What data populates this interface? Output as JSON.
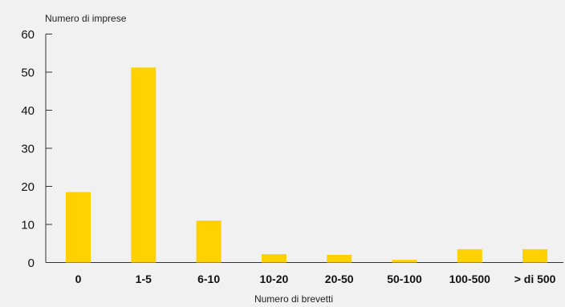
{
  "chart_data": {
    "type": "bar",
    "ylabel": "Numero di imprese",
    "xlabel": "Numero di brevetti",
    "categories": [
      "0",
      "1-5",
      "6-10",
      "10-20",
      "20-50",
      "50-100",
      "100-500",
      "> di 500"
    ],
    "values": [
      18.5,
      51.2,
      11,
      2.2,
      2,
      0.7,
      3.5,
      3.5
    ],
    "ylim": [
      0,
      60
    ],
    "yticks": [
      "0",
      "10",
      "20",
      "30",
      "40",
      "50",
      "60"
    ],
    "grid": false,
    "bar_color": "#ffd100",
    "background_color": "#f1f1f1",
    "axis_color": "#333333"
  }
}
